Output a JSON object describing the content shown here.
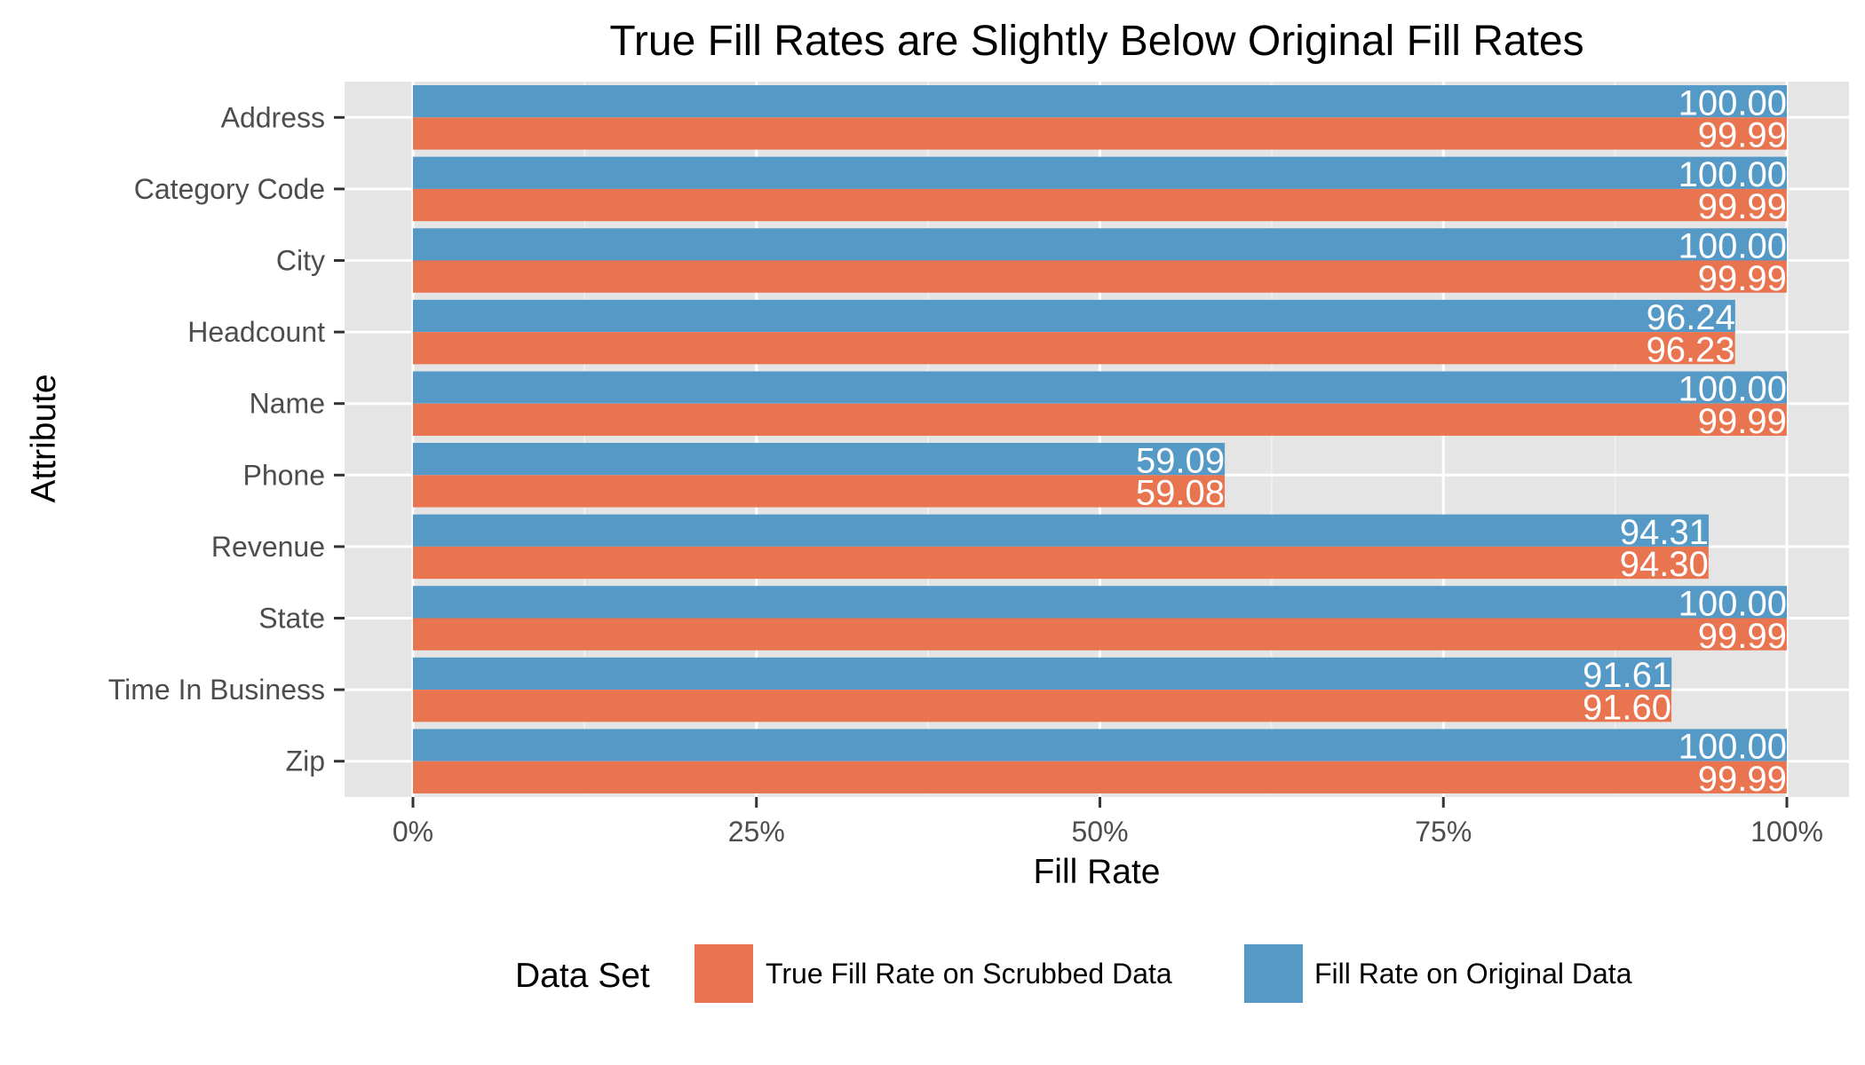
{
  "chart_data": {
    "type": "bar",
    "orientation": "horizontal",
    "title": "True Fill Rates are Slightly Below Original Fill Rates",
    "xlabel": "Fill Rate",
    "ylabel": "Attribute",
    "xlim": [
      0,
      100
    ],
    "x_ticks": [
      {
        "value": 0,
        "label": "0%"
      },
      {
        "value": 25,
        "label": "25%"
      },
      {
        "value": 50,
        "label": "50%"
      },
      {
        "value": 75,
        "label": "75%"
      },
      {
        "value": 100,
        "label": "100%"
      }
    ],
    "categories": [
      "Address",
      "Category Code",
      "City",
      "Headcount",
      "Name",
      "Phone",
      "Revenue",
      "State",
      "Time In Business",
      "Zip"
    ],
    "series": [
      {
        "name": "Fill Rate on Original Data",
        "color": "#5599c6",
        "values": [
          100.0,
          100.0,
          100.0,
          96.24,
          100.0,
          59.09,
          94.31,
          100.0,
          91.61,
          100.0
        ],
        "labels": [
          "100.00",
          "100.00",
          "100.00",
          "96.24",
          "100.00",
          "59.09",
          "94.31",
          "100.00",
          "91.61",
          "100.00"
        ]
      },
      {
        "name": "True Fill Rate on Scrubbed Data",
        "color": "#e97450",
        "values": [
          99.99,
          99.99,
          99.99,
          96.23,
          99.99,
          59.08,
          94.3,
          99.99,
          91.6,
          99.99
        ],
        "labels": [
          "99.99",
          "99.99",
          "99.99",
          "96.23",
          "99.99",
          "59.08",
          "94.30",
          "99.99",
          "91.60",
          "99.99"
        ]
      }
    ],
    "legend": {
      "title": "Data Set",
      "position": "bottom",
      "order": [
        "True Fill Rate on Scrubbed Data",
        "Fill Rate on Original Data"
      ]
    },
    "panel_background": "#e5e5e5",
    "grid": true
  }
}
